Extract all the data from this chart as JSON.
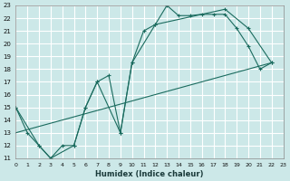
{
  "xlabel": "Humidex (Indice chaleur)",
  "bg_color": "#cce8e8",
  "grid_color": "#ffffff",
  "line_color": "#1a6b5e",
  "xlim": [
    0,
    23
  ],
  "ylim": [
    11,
    23
  ],
  "xticks": [
    0,
    1,
    2,
    3,
    4,
    5,
    6,
    7,
    8,
    9,
    10,
    11,
    12,
    13,
    14,
    15,
    16,
    17,
    18,
    19,
    20,
    21,
    22,
    23
  ],
  "yticks": [
    11,
    12,
    13,
    14,
    15,
    16,
    17,
    18,
    19,
    20,
    21,
    22,
    23
  ],
  "line1_x": [
    0,
    1,
    2,
    3,
    4,
    5,
    6,
    7,
    8,
    9,
    10,
    11,
    12,
    13,
    14,
    15,
    16,
    17,
    18,
    19,
    20,
    21,
    22
  ],
  "line1_y": [
    15.0,
    13.0,
    12.0,
    11.0,
    12.0,
    12.0,
    15.0,
    17.0,
    17.5,
    13.0,
    18.5,
    21.0,
    21.5,
    23.0,
    22.2,
    22.2,
    22.3,
    22.3,
    22.3,
    21.2,
    19.8,
    18.0,
    18.5
  ],
  "line2_x": [
    0,
    2,
    3,
    5,
    6,
    7,
    9,
    10,
    12,
    18,
    20,
    22
  ],
  "line2_y": [
    15.0,
    12.0,
    11.0,
    12.0,
    15.0,
    17.0,
    13.0,
    18.5,
    21.5,
    22.7,
    21.2,
    18.5
  ],
  "line3_x": [
    0,
    22
  ],
  "line3_y": [
    13.0,
    18.5
  ]
}
